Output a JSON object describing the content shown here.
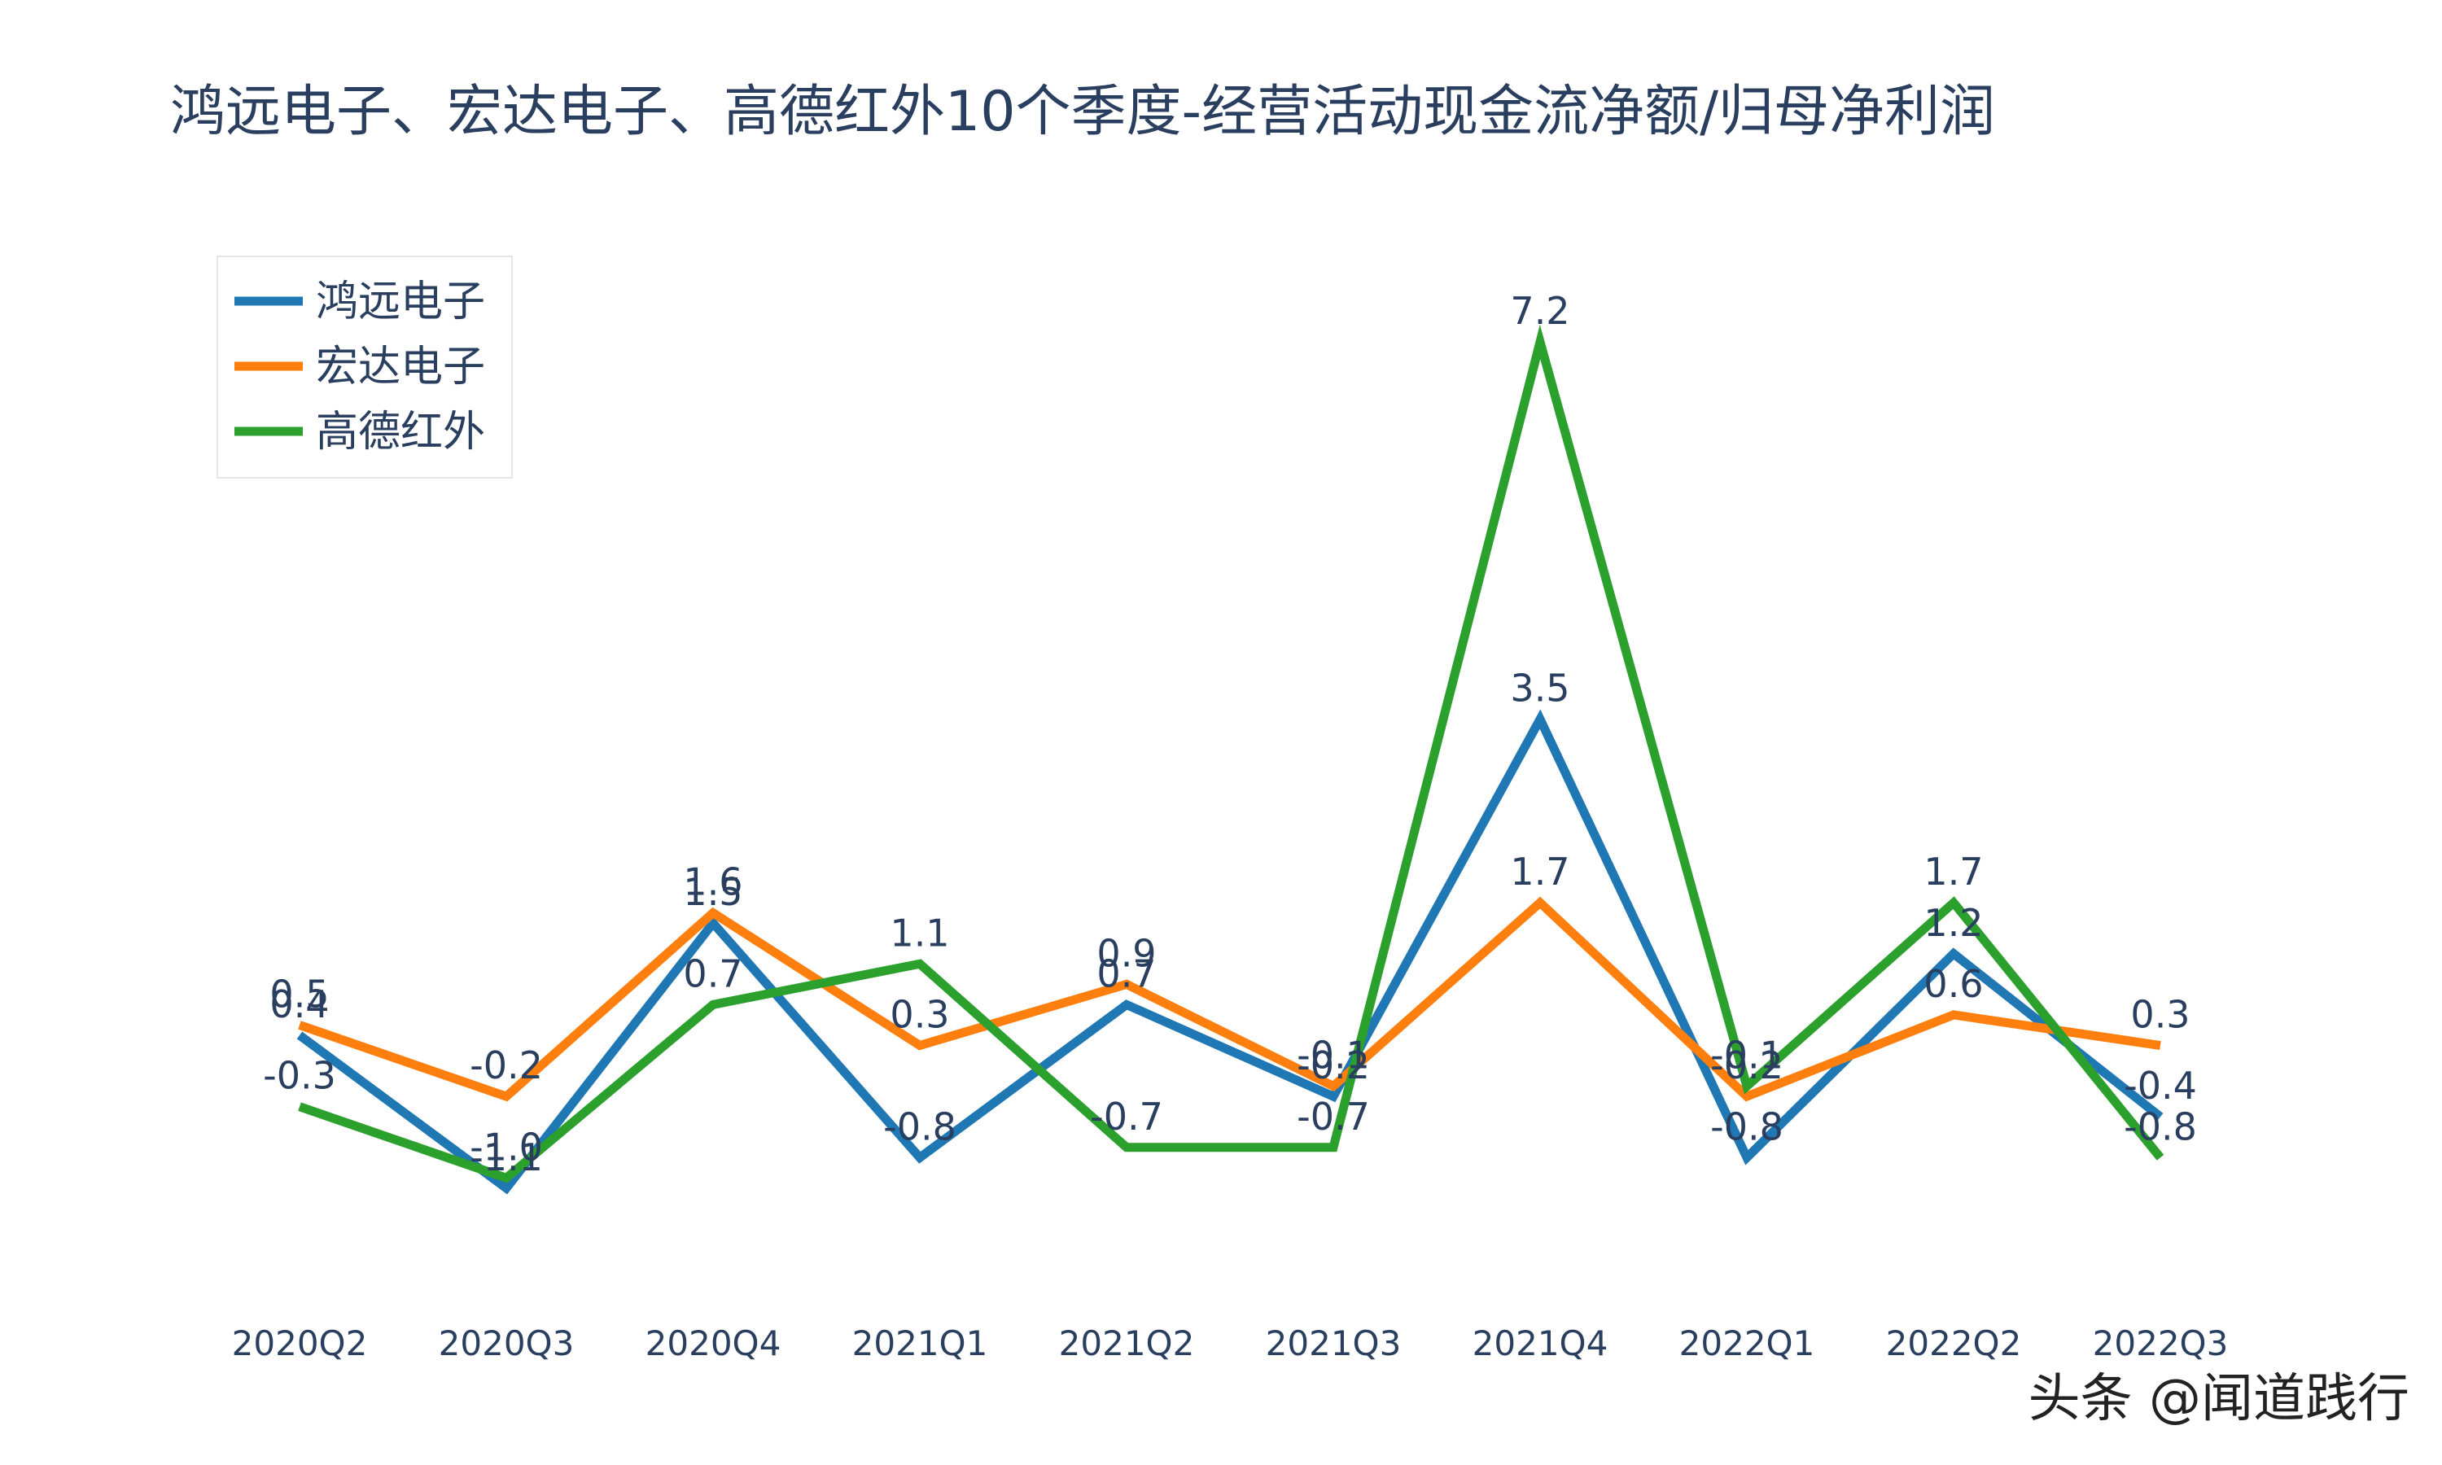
{
  "chart_data": {
    "type": "line",
    "title": "鸿远电子、宏达电子、高德红外10个季度-经营活动现金流净额/归母净利润",
    "xlabel": "",
    "ylabel": "",
    "categories": [
      "2020Q2",
      "2020Q3",
      "2020Q4",
      "2021Q1",
      "2021Q2",
      "2021Q3",
      "2021Q4",
      "2022Q1",
      "2022Q2",
      "2022Q3"
    ],
    "ylim": [
      -1.5,
      7.6
    ],
    "grid": false,
    "legend_position": "top-left",
    "series": [
      {
        "name": "鸿远电子",
        "color": "#1f77b4",
        "values": [
          0.4,
          -1.1,
          1.5,
          -0.8,
          0.7,
          -0.2,
          3.5,
          -0.8,
          1.2,
          -0.4
        ],
        "labels": [
          "0.4",
          "-1.1",
          "1.5",
          "-0.8",
          "0.7",
          "-0.2",
          "3.5",
          "-0.8",
          "1.2",
          "-0.4"
        ]
      },
      {
        "name": "宏达电子",
        "color": "#ff7f0e",
        "values": [
          0.5,
          -0.2,
          1.6,
          0.3,
          0.9,
          -0.1,
          1.7,
          -0.2,
          0.6,
          0.3
        ],
        "labels": [
          "0.5",
          "-0.2",
          "1.6",
          "0.3",
          "0.9",
          "-0.1",
          "1.7",
          "-0.2",
          "0.6",
          "0.3"
        ]
      },
      {
        "name": "高德红外",
        "color": "#2ca02c",
        "values": [
          -0.3,
          -1.0,
          0.7,
          1.1,
          -0.7,
          -0.7,
          7.2,
          -0.1,
          1.7,
          -0.8
        ],
        "labels": [
          "-0.3",
          "-1.0",
          "0.7",
          "1.1",
          "-0.7",
          "-0.7",
          "7.2",
          "-0.1",
          "1.7",
          "-0.8"
        ]
      }
    ]
  },
  "watermark": "头条 @闻道践行"
}
